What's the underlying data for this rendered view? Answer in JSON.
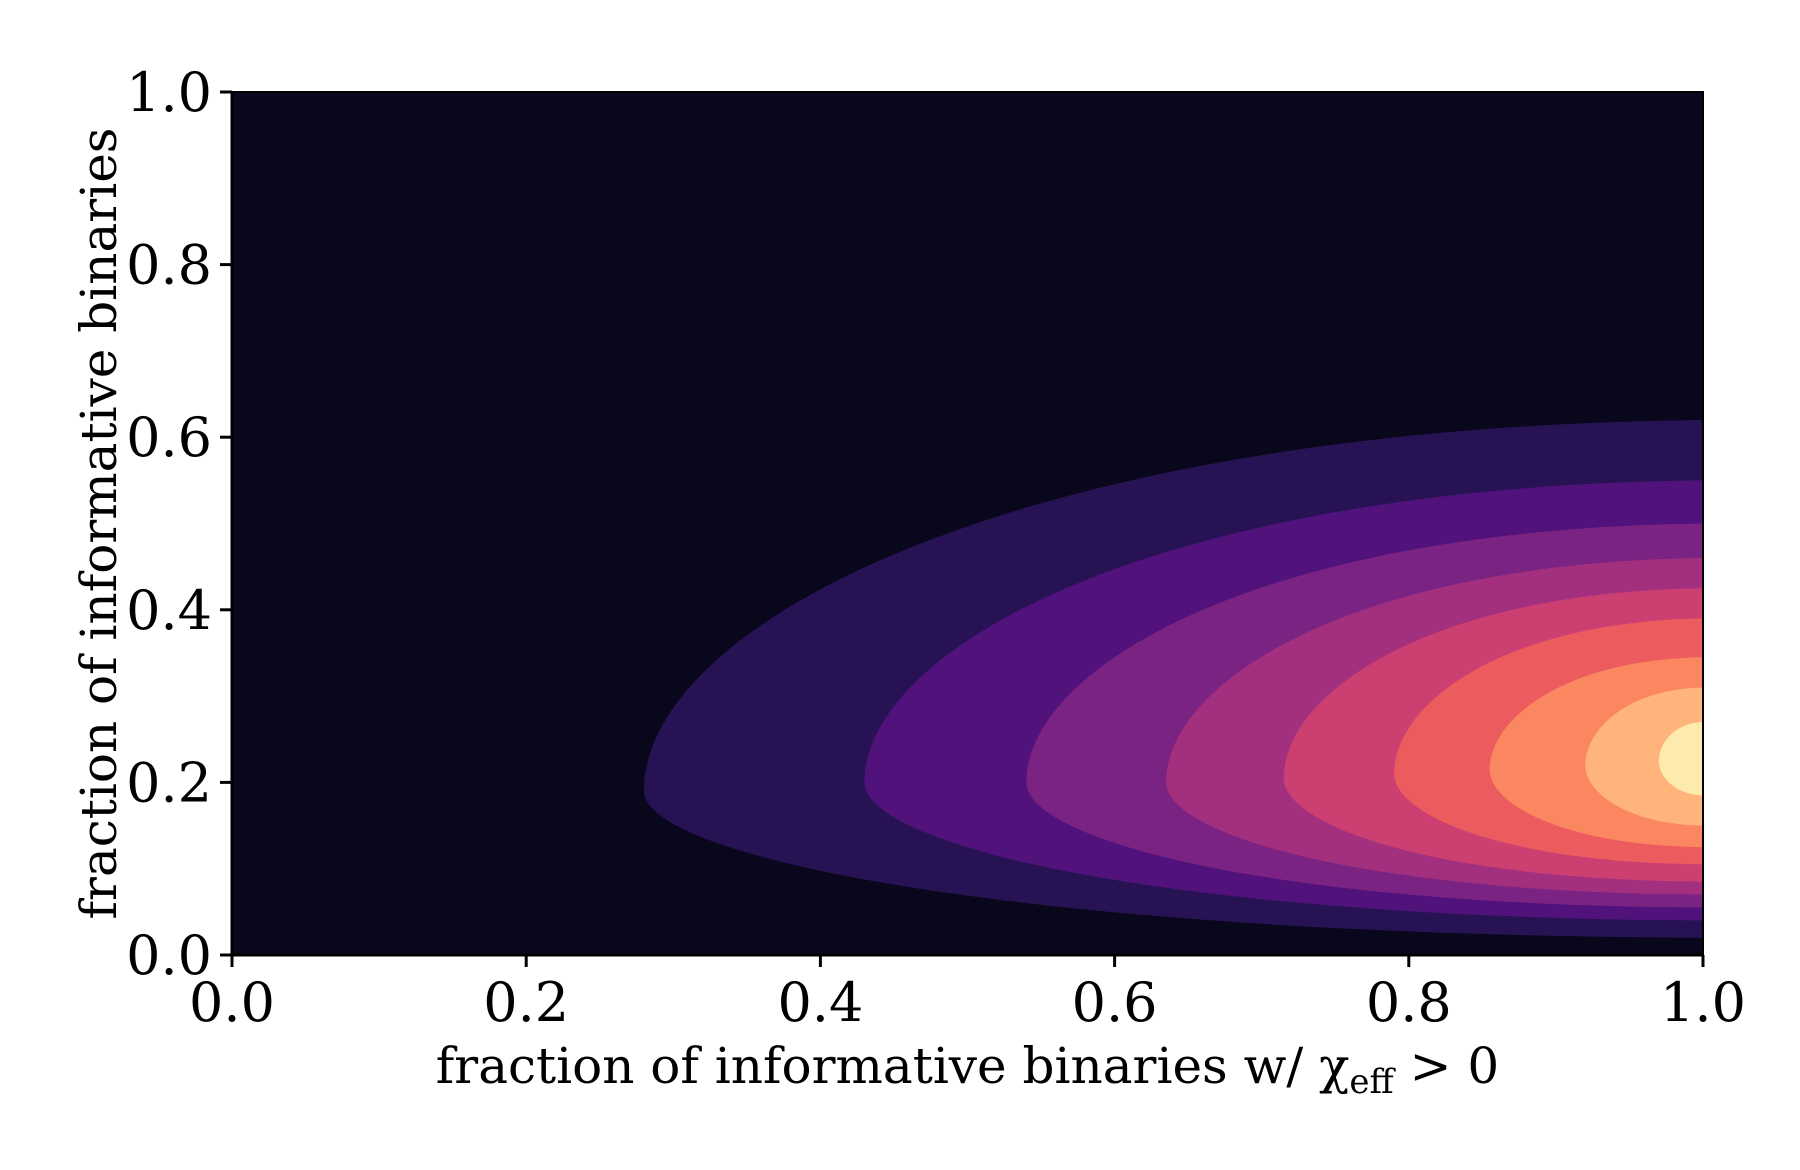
{
  "chart_data": {
    "type": "heatmap",
    "subtype": "filled-contour",
    "colormap": "magma",
    "xlabel": "fraction of informative binaries w/ χeff > 0",
    "xlabel_parts": {
      "main": "fraction of informative binaries w/ χ",
      "sub": "eff",
      "tail": " > 0"
    },
    "ylabel": "fraction of informative binaries",
    "xlim": [
      0.0,
      1.0
    ],
    "ylim": [
      0.0,
      1.0
    ],
    "xticks": [
      "0.0",
      "0.2",
      "0.4",
      "0.6",
      "0.8",
      "1.0"
    ],
    "yticks": [
      "0.0",
      "0.2",
      "0.4",
      "0.6",
      "0.8",
      "1.0"
    ],
    "grid": false,
    "legend": "none",
    "background_color": "#08071c",
    "contour_levels": [
      {
        "color": "#271354",
        "x_min": 0.28,
        "y_at_x_min": 0.19,
        "y_top_at_x1": 0.62,
        "y_bottom_at_x1": 0.02
      },
      {
        "color": "#51127c",
        "x_min": 0.43,
        "y_at_x_min": 0.2,
        "y_top_at_x1": 0.55,
        "y_bottom_at_x1": 0.04
      },
      {
        "color": "#7b2382",
        "x_min": 0.54,
        "y_at_x_min": 0.2,
        "y_top_at_x1": 0.5,
        "y_bottom_at_x1": 0.055
      },
      {
        "color": "#a3307e",
        "x_min": 0.635,
        "y_at_x_min": 0.2,
        "y_top_at_x1": 0.46,
        "y_bottom_at_x1": 0.07
      },
      {
        "color": "#cc3f71",
        "x_min": 0.715,
        "y_at_x_min": 0.205,
        "y_top_at_x1": 0.425,
        "y_bottom_at_x1": 0.085
      },
      {
        "color": "#ec5b5e",
        "x_min": 0.79,
        "y_at_x_min": 0.21,
        "y_top_at_x1": 0.39,
        "y_bottom_at_x1": 0.105
      },
      {
        "color": "#fb8761",
        "x_min": 0.855,
        "y_at_x_min": 0.215,
        "y_top_at_x1": 0.345,
        "y_bottom_at_x1": 0.125
      },
      {
        "color": "#feb47b",
        "x_min": 0.92,
        "y_at_x_min": 0.22,
        "y_top_at_x1": 0.31,
        "y_bottom_at_x1": 0.15
      },
      {
        "color": "#fcebac",
        "x_min": 0.97,
        "y_at_x_min": 0.225,
        "y_top_at_x1": 0.27,
        "y_bottom_at_x1": 0.185
      }
    ]
  }
}
